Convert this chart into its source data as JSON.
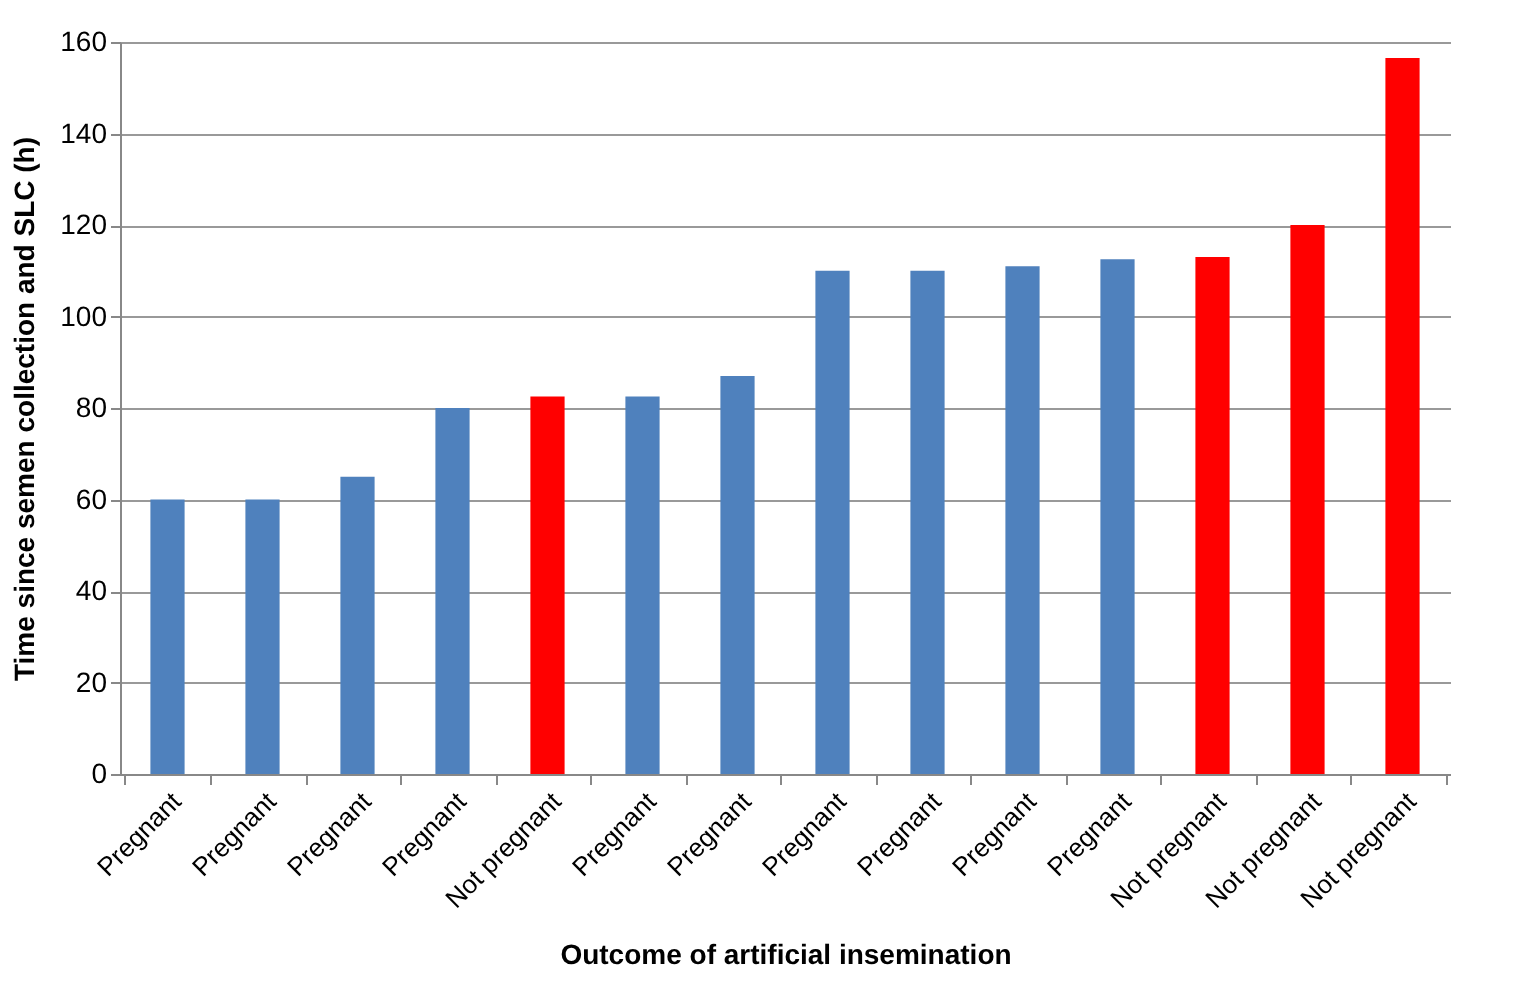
{
  "chart_data": {
    "type": "bar",
    "xlabel": "Outcome of artificial insemination",
    "ylabel": "Time since semen collection and SLC (h)",
    "categories": [
      "Pregnant",
      "Pregnant",
      "Pregnant",
      "Pregnant",
      "Not pregnant",
      "Pregnant",
      "Pregnant",
      "Pregnant",
      "Pregnant",
      "Pregnant",
      "Pregnant",
      "Not pregnant",
      "Not pregnant",
      "Not pregnant"
    ],
    "values": [
      60,
      60,
      65,
      80,
      82.5,
      82.5,
      87,
      110,
      110,
      111,
      112.5,
      113,
      120,
      156.5
    ],
    "colors": [
      "#4f81bd",
      "#4f81bd",
      "#4f81bd",
      "#4f81bd",
      "#ff0000",
      "#4f81bd",
      "#4f81bd",
      "#4f81bd",
      "#4f81bd",
      "#4f81bd",
      "#4f81bd",
      "#ff0000",
      "#ff0000",
      "#ff0000"
    ],
    "ylim": [
      0,
      160
    ],
    "yticks": [
      0,
      20,
      40,
      60,
      80,
      100,
      120,
      140,
      160
    ],
    "grid": "y"
  }
}
